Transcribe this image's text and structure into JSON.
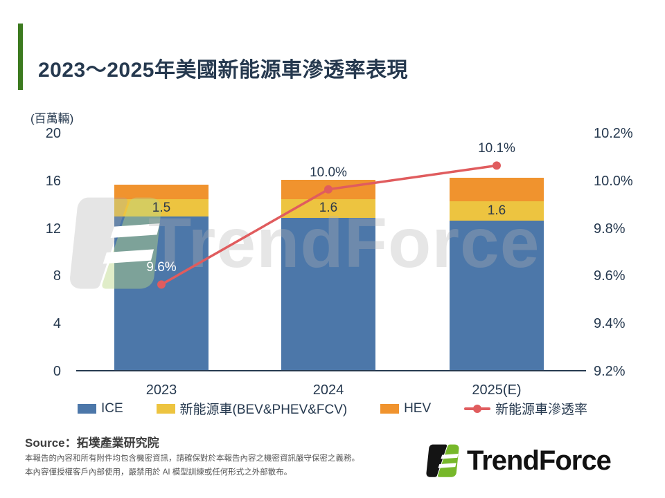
{
  "slide": {
    "title": "2023～2025年美國新能源車滲透率表現",
    "source": "Source：拓墣產業研究院",
    "disclaimer_line1": "本報告的內容和所有附件均包含機密資訊，請確保對於本報告內容之機密資訊嚴守保密之義務。",
    "disclaimer_line2": "本內容僅授權客戶內部使用，嚴禁用於 AI 模型訓練或任何形式之外部散布。",
    "watermark_text": "TrendForce",
    "logo_text": "TrendForce",
    "accent_color": "#3C7A1F",
    "logo_green": "#77B82A",
    "text_navy": "#26394F"
  },
  "chart_data": {
    "type": "bar",
    "subtype": "stacked-bars-with-line",
    "title": "2023～2025年美國新能源車滲透率表現",
    "unit_label": "(百萬輛)",
    "categories": [
      "2023",
      "2024",
      "2025(E)"
    ],
    "series": [
      {
        "name": "ICE",
        "type": "bar",
        "color": "#4C77A9",
        "values": [
          13.0,
          12.9,
          12.7
        ]
      },
      {
        "name": "新能源車(BEV&PHEV&FCV)",
        "type": "bar",
        "color": "#EDC440",
        "values": [
          1.5,
          1.6,
          1.6
        ],
        "labels": [
          "1.5",
          "1.6",
          "1.6"
        ]
      },
      {
        "name": "HEV",
        "type": "bar",
        "color": "#F0932E",
        "values": [
          1.2,
          1.6,
          2.0
        ]
      },
      {
        "name": "新能源車滲透率",
        "type": "line",
        "color": "#E05C5E",
        "axis": "right",
        "values": [
          9.6,
          10.0,
          10.1
        ],
        "labels": [
          "9.6%",
          "10.0%",
          "10.1%"
        ]
      }
    ],
    "left_axis": {
      "ticks": [
        "20",
        "16",
        "12",
        "8",
        "4",
        "0"
      ],
      "range": [
        0,
        20
      ]
    },
    "right_axis": {
      "ticks": [
        "10.2%",
        "10.0%",
        "9.8%",
        "9.6%",
        "9.4%",
        "9.2%"
      ],
      "range": [
        9.2,
        10.2
      ]
    },
    "stacked": true,
    "grid": false,
    "legend_position": "bottom"
  }
}
